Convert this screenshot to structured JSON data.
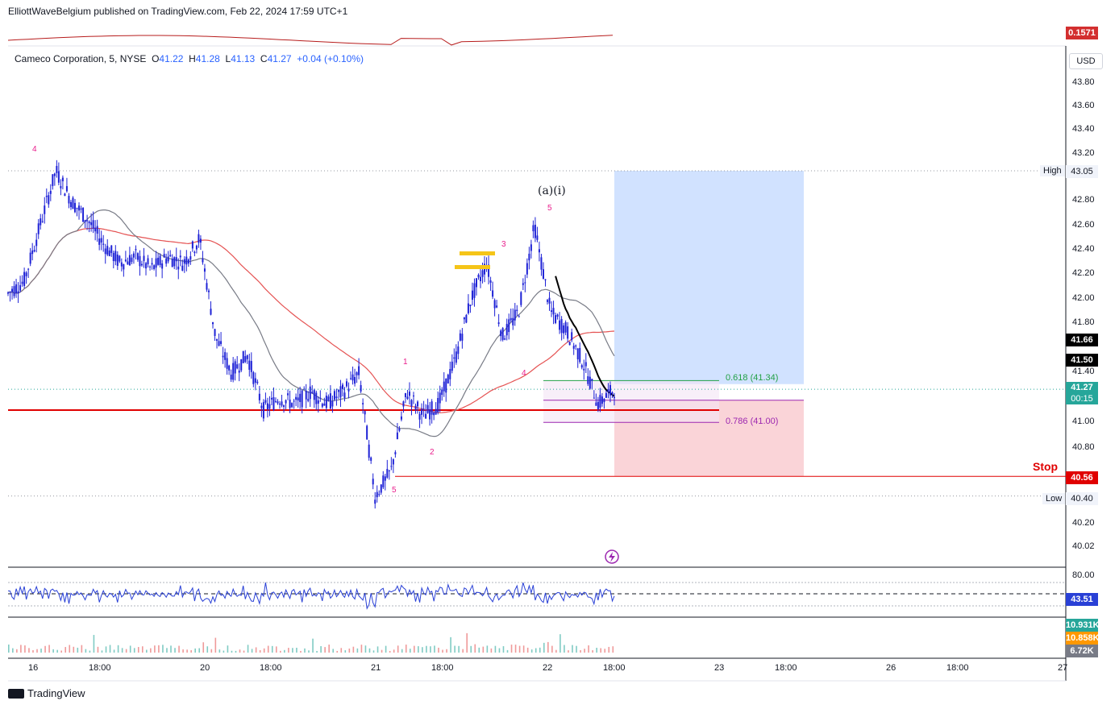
{
  "publisher_line": "ElliottWaveBelgium published on TradingView.com, Feb 22, 2024 17:59 UTC+1",
  "symbol_header": {
    "name": "Cameco Corporation, 5, NYSE",
    "open_label": "O",
    "open": "41.22",
    "high_label": "H",
    "high": "41.28",
    "low_label": "L",
    "low": "41.13",
    "close_label": "C",
    "close": "41.27",
    "change": "+0.04 (+0.10%)"
  },
  "currency": "USD",
  "top_indicator_value": "0.1571",
  "price_axis_ticks": [
    "43.80",
    "43.60",
    "43.40",
    "43.20",
    "42.80",
    "42.60",
    "42.40",
    "42.20",
    "42.00",
    "41.80",
    "41.40",
    "41.00",
    "40.80",
    "40.20",
    "40.02"
  ],
  "price_badges": {
    "high": "43.05",
    "high_label": "High",
    "ma_black": "41.66",
    "ma_grey": "41.50",
    "last": "41.27",
    "countdown": "00:15",
    "stop": "40.56",
    "low": "40.40",
    "low_label": "Low"
  },
  "stop_label": "Stop",
  "fib": {
    "f618": "0.618 (41.34)",
    "f786": "0.786 (41.00)"
  },
  "wave_labels": {
    "w4a": "4",
    "w1": "1",
    "w2": "2",
    "w3": "3",
    "w4b": "4",
    "w5a": "5",
    "w5b": "5",
    "wave_a_i": "(a)(i)"
  },
  "rsi": {
    "level_80": "80.00",
    "value": "43.51"
  },
  "volume": {
    "v1": "10.931K",
    "v2": "10.858K",
    "v3": "6.72K"
  },
  "time_axis": [
    "16",
    "18:00",
    "20",
    "18:00",
    "21",
    "18:00",
    "22",
    "18:00",
    "23",
    "18:00",
    "26",
    "18:00",
    "27"
  ],
  "brand": "TradingView",
  "colors": {
    "candle": "#1e22d6",
    "ma_red": "#e55353",
    "ma_grey": "#787b86",
    "ma_black": "#000000",
    "support": "#e00000",
    "target": "#cfe0ff",
    "stop_zone": "#fad4d8",
    "fib618": "#22a045",
    "fib786": "#9c27b0",
    "wave": "#e91e8c",
    "rsi": "#2940d6"
  },
  "chart_data": {
    "type": "candlestick",
    "title": "Cameco Corporation, 5, NYSE",
    "xlabel": "",
    "ylabel": "",
    "ylim": [
      40.0,
      43.9
    ],
    "x_sessions": [
      "Feb 16",
      "Feb 20",
      "Feb 21",
      "Feb 22"
    ],
    "price_path": [
      42.05,
      42.15,
      42.6,
      43.05,
      42.8,
      42.65,
      42.45,
      42.3,
      42.35,
      42.25,
      42.35,
      42.3,
      42.5,
      41.7,
      41.4,
      41.55,
      41.1,
      41.2,
      41.15,
      41.25,
      41.15,
      41.25,
      41.4,
      40.4,
      40.6,
      41.25,
      41.05,
      41.15,
      41.5,
      42.0,
      42.3,
      41.7,
      41.9,
      42.6,
      41.9,
      41.75,
      41.5,
      41.15,
      41.27
    ],
    "key_levels": {
      "high": 43.05,
      "low": 40.4,
      "support": 41.1,
      "stop": 40.56,
      "fib_618": 41.34,
      "fib_786": 41.0,
      "target_top": 43.05
    },
    "moving_averages": {
      "black": 41.66,
      "grey": 41.5
    },
    "rsi_last": 43.51,
    "volume_last": [
      10.931,
      10.858,
      6.72
    ]
  }
}
